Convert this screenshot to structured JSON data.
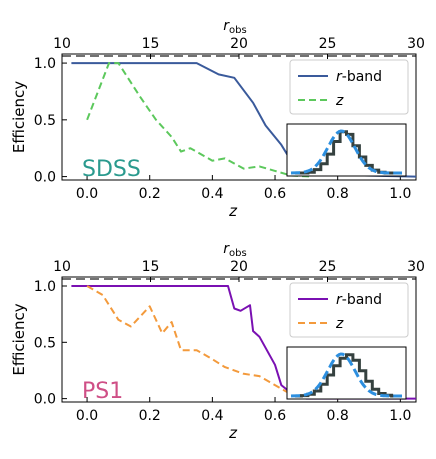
{
  "chart_data": [
    {
      "type": "line",
      "annotation": "SDSS",
      "annotation_color": "#2a9a8e",
      "xlabel": "z",
      "ylabel": "Efficiency",
      "xlim": [
        -0.08,
        1.05
      ],
      "ylim": [
        -0.03,
        1.08
      ],
      "x_ticks": [
        "0.0",
        "0.2",
        "0.4",
        "0.6",
        "0.8",
        "1.0"
      ],
      "y_ticks": [
        "0.0",
        "0.5",
        "1.0"
      ],
      "top_axis": {
        "label_main": "r",
        "label_sub": "obs",
        "ticks": [
          "10",
          "15",
          "20",
          "25",
          "30"
        ]
      },
      "legend_position": "upper right",
      "series": [
        {
          "name": "r",
          "name_suffix": "-band",
          "color": "#3a5a9b",
          "style": "solid",
          "x": [
            -0.05,
            0.35,
            0.42,
            0.47,
            0.53,
            0.57,
            0.62,
            0.66,
            0.7,
            1.05
          ],
          "y": [
            1.0,
            1.0,
            0.9,
            0.87,
            0.65,
            0.45,
            0.28,
            0.1,
            0.02,
            0.0
          ]
        },
        {
          "name": "z",
          "name_suffix": "",
          "color": "#5cc85c",
          "style": "dashed",
          "x": [
            0.0,
            0.07,
            0.1,
            0.17,
            0.22,
            0.27,
            0.3,
            0.33,
            0.4,
            0.44,
            0.5,
            0.55,
            0.6,
            0.65,
            0.72
          ],
          "y": [
            0.5,
            1.0,
            1.0,
            0.7,
            0.5,
            0.35,
            0.22,
            0.25,
            0.14,
            0.16,
            0.07,
            0.09,
            0.05,
            0.01,
            0.0
          ]
        }
      ],
      "inset": {
        "histogram": [
          0.0,
          0.0,
          0.02,
          0.08,
          0.22,
          0.45,
          0.75,
          0.98,
          0.92,
          0.65,
          0.38,
          0.18,
          0.07,
          0.02,
          0.0,
          0.0
        ],
        "histogram_color": "#35413f",
        "gaussian_color": "#2d8fdf"
      }
    },
    {
      "type": "line",
      "annotation": "PS1",
      "annotation_color": "#cf4f86",
      "xlabel": "z",
      "ylabel": "Efficiency",
      "xlim": [
        -0.08,
        1.05
      ],
      "ylim": [
        -0.03,
        1.08
      ],
      "x_ticks": [
        "0.0",
        "0.2",
        "0.4",
        "0.6",
        "0.8",
        "1.0"
      ],
      "y_ticks": [
        "0.0",
        "0.5",
        "1.0"
      ],
      "top_axis": {
        "label_main": "r",
        "label_sub": "obs",
        "ticks": [
          "10",
          "15",
          "20",
          "25",
          "30"
        ]
      },
      "legend_position": "upper right",
      "series": [
        {
          "name": "r",
          "name_suffix": "-band",
          "color": "#7a10b2",
          "style": "solid",
          "x": [
            -0.05,
            0.45,
            0.47,
            0.49,
            0.52,
            0.53,
            0.55,
            0.6,
            0.62,
            0.66,
            0.7,
            1.05
          ],
          "y": [
            1.0,
            1.0,
            0.8,
            0.78,
            0.83,
            0.6,
            0.55,
            0.3,
            0.12,
            0.03,
            0.0,
            0.0
          ]
        },
        {
          "name": "z",
          "name_suffix": "",
          "color": "#f39a3c",
          "style": "dashed",
          "x": [
            0.0,
            0.05,
            0.1,
            0.14,
            0.2,
            0.24,
            0.27,
            0.3,
            0.35,
            0.4,
            0.44,
            0.5,
            0.55,
            0.6,
            0.65,
            0.7,
            0.8
          ],
          "y": [
            1.0,
            0.92,
            0.7,
            0.64,
            0.82,
            0.58,
            0.68,
            0.43,
            0.43,
            0.35,
            0.28,
            0.22,
            0.2,
            0.12,
            0.04,
            0.01,
            0.0
          ]
        }
      ],
      "inset": {
        "histogram": [
          0.0,
          0.01,
          0.04,
          0.12,
          0.28,
          0.5,
          0.72,
          0.9,
          0.98,
          0.85,
          0.6,
          0.35,
          0.16,
          0.06,
          0.02,
          0.0
        ],
        "histogram_color": "#35413f",
        "gaussian_color": "#2d8fdf"
      }
    }
  ]
}
